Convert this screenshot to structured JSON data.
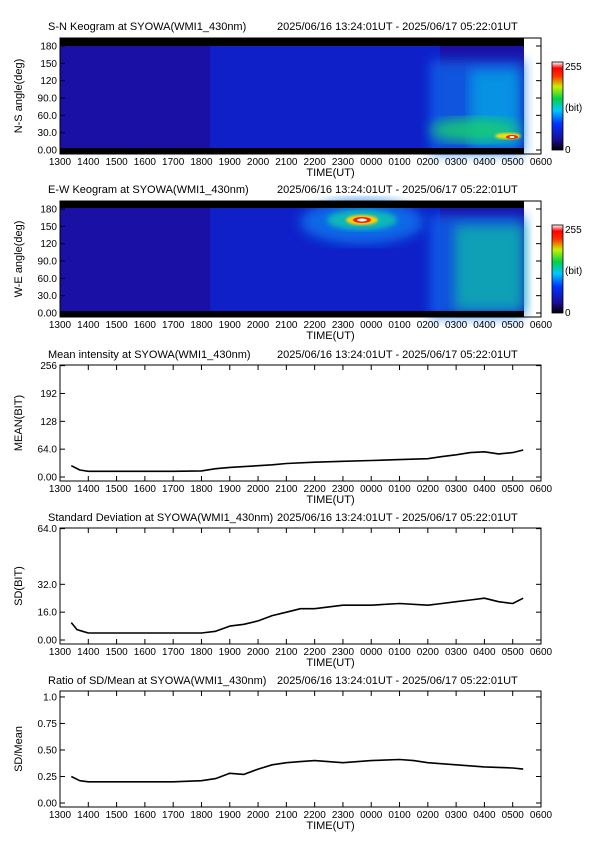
{
  "header_range": "2025/06/16 13:24:01UT - 2025/06/17 05:22:01UT",
  "x_ticks": [
    "1300",
    "1400",
    "1500",
    "1600",
    "1700",
    "1800",
    "1900",
    "2000",
    "2100",
    "2200",
    "2300",
    "0000",
    "0100",
    "0200",
    "0300",
    "0400",
    "0500",
    "0600"
  ],
  "xlabel": "TIME(UT)",
  "chart_data": [
    {
      "type": "heatmap",
      "title": "S-N Keogram at SYOWA(WMI1_430nm)",
      "ylabel": "N-S angle(deg)",
      "y_ticks": [
        "0.00",
        "30.0",
        "60.0",
        "90.0",
        "120",
        "150",
        "180"
      ],
      "ylim": [
        0,
        180
      ],
      "xlim": [
        "13:00",
        "06:00"
      ],
      "data_range": [
        "13:24",
        "05:22"
      ],
      "colorbar": {
        "min_label": "0",
        "max_label": "255",
        "unit_label": "(bit)",
        "colormap": "rainbow"
      },
      "features": [
        {
          "desc": "aurora enhancement",
          "time_start": "02:20",
          "time_end": "05:22",
          "angle_range": [
            0,
            170
          ]
        },
        {
          "desc": "bright spot",
          "time": "05:15",
          "angle": 25,
          "value_bit": 255
        }
      ]
    },
    {
      "type": "heatmap",
      "title": "E-W Keogram at SYOWA(WMI1_430nm)",
      "ylabel": "W-E angle(deg)",
      "y_ticks": [
        "0.00",
        "30.0",
        "60.0",
        "90.0",
        "120",
        "150",
        "180"
      ],
      "ylim": [
        0,
        180
      ],
      "xlim": [
        "13:00",
        "06:00"
      ],
      "data_range": [
        "13:24",
        "05:22"
      ],
      "colorbar": {
        "min_label": "0",
        "max_label": "255",
        "unit_label": "(bit)",
        "colormap": "rainbow"
      },
      "features": [
        {
          "desc": "bright spot (moon)",
          "time": "23:55",
          "angle": 150,
          "value_bit": 255
        },
        {
          "desc": "aurora enhancement",
          "time_start": "02:20",
          "time_end": "05:22",
          "angle_range": [
            0,
            180
          ]
        }
      ]
    },
    {
      "type": "line",
      "title": "Mean intensity at SYOWA(WMI1_430nm)",
      "ylabel": "MEAN(BIT)",
      "y_ticks": [
        "0.00",
        "64.0",
        "128",
        "192",
        "256"
      ],
      "ylim": [
        0,
        256
      ],
      "series": [
        {
          "x": [
            13.4,
            13.7,
            14.0,
            14.5,
            15.0,
            16.0,
            17.0,
            18.0,
            18.5,
            19.0,
            19.5,
            20.0,
            20.5,
            21.0,
            22.0,
            23.0,
            24.0,
            25.0,
            26.0,
            26.5,
            27.0,
            27.5,
            28.0,
            28.5,
            29.0,
            29.37
          ],
          "values": [
            26,
            16,
            13,
            13,
            13,
            13,
            13,
            14,
            19,
            22,
            24,
            26,
            28,
            31,
            34,
            36,
            38,
            40,
            42,
            47,
            51,
            56,
            58,
            53,
            56,
            62
          ]
        }
      ]
    },
    {
      "type": "line",
      "title": "Standard Deviation at SYOWA(WMI1_430nm)",
      "ylabel": "SD(BIT)",
      "y_ticks": [
        "0.00",
        "16.0",
        "32.0",
        "64.0"
      ],
      "ylim": [
        0,
        64
      ],
      "series": [
        {
          "x": [
            13.4,
            13.6,
            13.8,
            14.0,
            15.0,
            16.0,
            17.0,
            18.0,
            18.5,
            19.0,
            19.5,
            20.0,
            20.5,
            21.0,
            21.5,
            22.0,
            23.0,
            24.0,
            25.0,
            26.0,
            26.5,
            27.0,
            27.5,
            28.0,
            28.5,
            29.0,
            29.37
          ],
          "values": [
            10,
            6,
            5,
            4,
            4,
            4,
            4,
            4,
            5,
            8,
            9,
            11,
            14,
            16,
            18,
            18,
            20,
            20,
            21,
            20,
            21,
            22,
            23,
            24,
            22,
            21,
            24
          ]
        }
      ]
    },
    {
      "type": "line",
      "title": "Ratio of SD/Mean at SYOWA(WMI1_430nm)",
      "ylabel": "SD/Mean",
      "y_ticks": [
        "0.00",
        "0.25",
        "0.50",
        "0.75",
        "1.0"
      ],
      "ylim": [
        0,
        1.05
      ],
      "series": [
        {
          "x": [
            13.4,
            13.7,
            14.0,
            15.0,
            16.0,
            17.0,
            18.0,
            18.5,
            19.0,
            19.5,
            20.0,
            20.5,
            21.0,
            21.5,
            22.0,
            23.0,
            24.0,
            25.0,
            25.5,
            26.0,
            27.0,
            28.0,
            29.0,
            29.37
          ],
          "values": [
            0.25,
            0.21,
            0.2,
            0.2,
            0.2,
            0.2,
            0.21,
            0.23,
            0.28,
            0.27,
            0.32,
            0.36,
            0.38,
            0.39,
            0.4,
            0.38,
            0.4,
            0.41,
            0.4,
            0.38,
            0.36,
            0.34,
            0.33,
            0.32
          ]
        }
      ]
    }
  ]
}
